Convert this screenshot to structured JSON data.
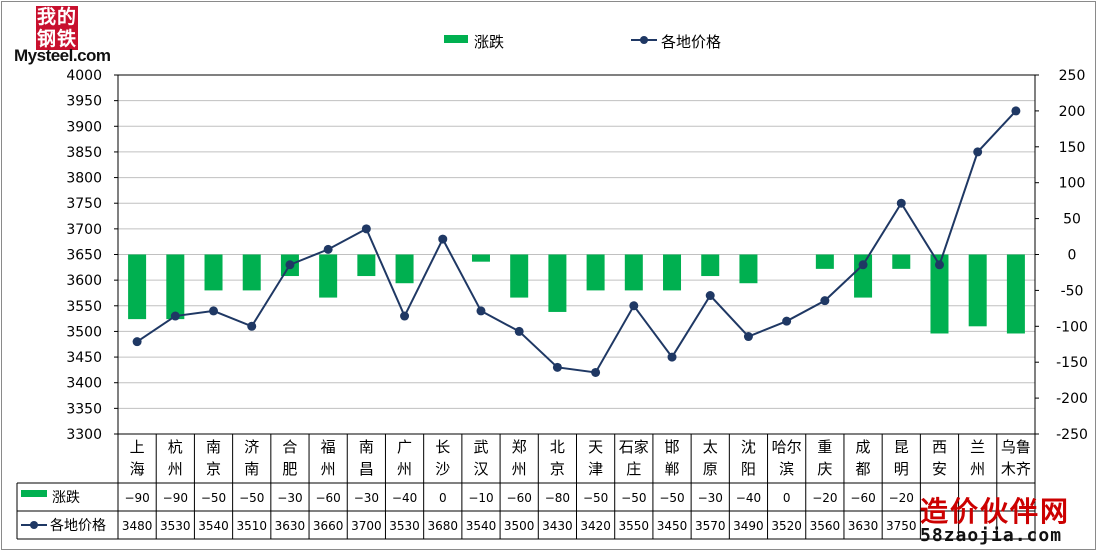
{
  "logo": {
    "cn_line1": "我的",
    "cn_line2": "钢铁",
    "en": "Mysteel.com"
  },
  "watermark": {
    "cn": "造价伙伴网",
    "en": "58zaojia.com"
  },
  "colors": {
    "bar": "#00b050",
    "line": "#1f3864",
    "grid": "#c0c0c0"
  },
  "chart_data": {
    "type": "bar+line",
    "categories": [
      [
        "上",
        "海"
      ],
      [
        "杭",
        "州"
      ],
      [
        "南",
        "京"
      ],
      [
        "济",
        "南"
      ],
      [
        "合",
        "肥"
      ],
      [
        "福",
        "州"
      ],
      [
        "南",
        "昌"
      ],
      [
        "广",
        "州"
      ],
      [
        "长",
        "沙"
      ],
      [
        "武",
        "汉"
      ],
      [
        "郑",
        "州"
      ],
      [
        "北",
        "京"
      ],
      [
        "天",
        "津"
      ],
      [
        "石家",
        "庄"
      ],
      [
        "邯",
        "郸"
      ],
      [
        "太",
        "原"
      ],
      [
        "沈",
        "阳"
      ],
      [
        "哈尔",
        "滨"
      ],
      [
        "重",
        "庆"
      ],
      [
        "成",
        "都"
      ],
      [
        "昆",
        "明"
      ],
      [
        "西",
        "安"
      ],
      [
        "兰",
        "州"
      ],
      [
        "乌鲁",
        "木齐"
      ]
    ],
    "series": [
      {
        "name": "涨跌",
        "type": "bar",
        "axis": "right",
        "values": [
          -90,
          -90,
          -50,
          -50,
          -30,
          -60,
          -30,
          -40,
          0,
          -10,
          -60,
          -80,
          -50,
          -50,
          -50,
          -30,
          -40,
          0,
          -20,
          -60,
          -20,
          -110,
          -100,
          -110
        ],
        "table_values": [
          "-90",
          "-90",
          "-50",
          "-50",
          "-30",
          "-60",
          "-30",
          "-40",
          "0",
          "-10",
          "-60",
          "-80",
          "-50",
          "-50",
          "-50",
          "-30",
          "-40",
          "0",
          "-20",
          "-60",
          "-20",
          "",
          "",
          ""
        ]
      },
      {
        "name": "各地价格",
        "type": "line",
        "axis": "left",
        "values": [
          3480,
          3530,
          3540,
          3510,
          3630,
          3660,
          3700,
          3530,
          3680,
          3540,
          3500,
          3430,
          3420,
          3550,
          3450,
          3570,
          3490,
          3520,
          3560,
          3630,
          3750,
          3630,
          3850,
          3930
        ],
        "table_values": [
          "3480",
          "3530",
          "3540",
          "3510",
          "3630",
          "3660",
          "3700",
          "3530",
          "3680",
          "3540",
          "3500",
          "3430",
          "3420",
          "3550",
          "3450",
          "3570",
          "3490",
          "3520",
          "3560",
          "3630",
          "3750",
          "",
          "",
          ""
        ]
      }
    ],
    "y_left": {
      "min": 3300,
      "max": 4000,
      "ticks": [
        "3300",
        "3350",
        "3400",
        "3450",
        "3500",
        "3550",
        "3600",
        "3650",
        "3700",
        "3750",
        "3800",
        "3850",
        "3900",
        "3950",
        "4000"
      ]
    },
    "y_right": {
      "min": -250,
      "max": 250,
      "ticks": [
        "250",
        "200",
        "150",
        "100",
        "50",
        "0",
        "-50",
        "-100",
        "-150",
        "-200",
        "-250"
      ]
    },
    "legend_position": "top",
    "grid": true
  }
}
